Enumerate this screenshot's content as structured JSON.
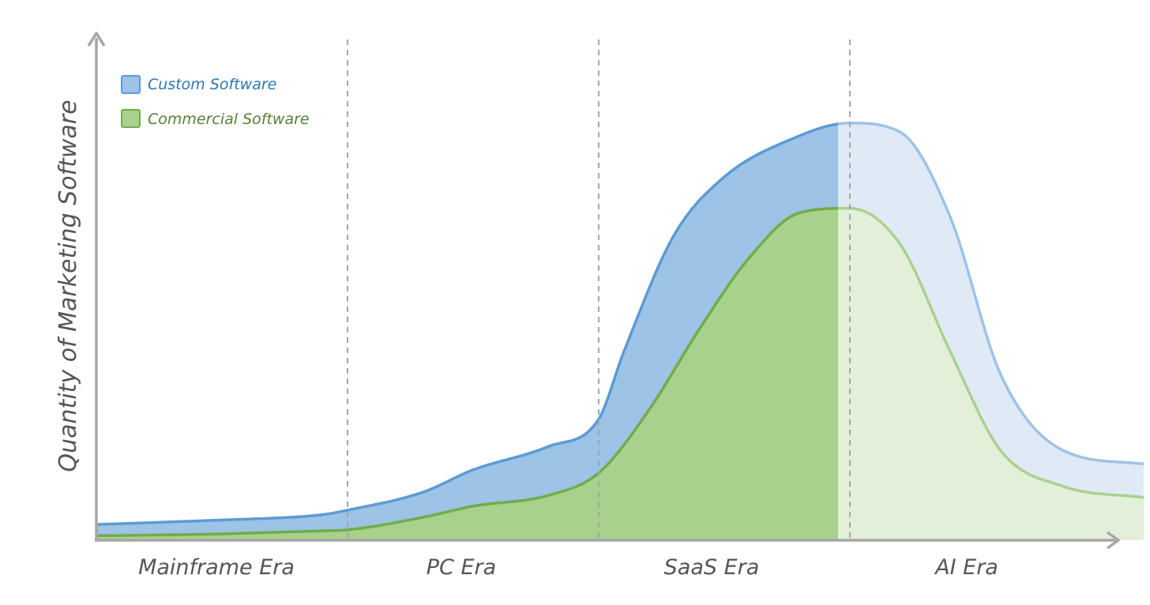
{
  "chart_data": {
    "type": "area",
    "title": "",
    "xlabel": "",
    "ylabel": "Quantity of Marketing Software",
    "eras": [
      "Mainframe Era",
      "PC Era",
      "SaaS Era",
      "AI Era"
    ],
    "x_range": [
      0,
      4
    ],
    "y_range": [
      0,
      100
    ],
    "grid": false,
    "legend_position": "top-left",
    "projection_start_x": 3,
    "series": [
      {
        "name": "Custom Software",
        "color": "#9dc3e6",
        "line_color": "#5b9bd5",
        "projected_color": "#dfeaf6",
        "projected_line_color": "#9dc3e6",
        "x": [
          0,
          0.5,
          0.9,
          1.0,
          1.3,
          1.5,
          1.8,
          2.0,
          2.1,
          2.3,
          2.5,
          2.75,
          3.0,
          3.2,
          3.4,
          3.6,
          3.85,
          4.17
        ],
        "y": [
          3.5,
          4.5,
          5.7,
          6.7,
          10.7,
          15.7,
          20.9,
          27,
          42,
          68,
          81,
          89,
          93,
          91,
          72,
          37,
          20,
          17
        ]
      },
      {
        "name": "Commercial Software",
        "color": "#a9d18e",
        "line_color": "#70ad47",
        "projected_color": "#e2f0d9",
        "projected_line_color": "#a9d18e",
        "x": [
          0,
          0.5,
          0.9,
          1.0,
          1.3,
          1.5,
          1.8,
          2.0,
          2.2,
          2.4,
          2.6,
          2.8,
          3.0,
          3.2,
          3.4,
          3.6,
          3.85,
          4.17
        ],
        "y": [
          1,
          1.4,
          2.1,
          2.3,
          5.1,
          7.6,
          10,
          15,
          29,
          47,
          63,
          73,
          74,
          66,
          42,
          20,
          12,
          9.5
        ]
      }
    ]
  }
}
